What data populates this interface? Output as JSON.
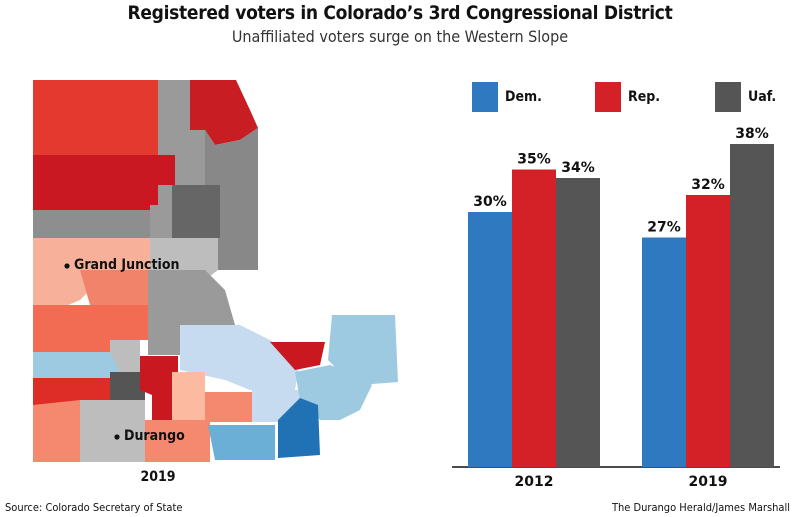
{
  "title": "Registered voters in Colorado’s 3rd Congressional District",
  "subtitle": "Unaffiliated voters surge on the Western Slope",
  "map": {
    "year_label": "2019",
    "cities": [
      "Grand Junction",
      "Durango"
    ]
  },
  "legend": [
    {
      "label": "Dem.",
      "color": "#2f79c0"
    },
    {
      "label": "Rep.",
      "color": "#d42027"
    },
    {
      "label": "Uaf.",
      "color": "#555555"
    }
  ],
  "chart_data": {
    "type": "bar",
    "categories": [
      "2012",
      "2019"
    ],
    "series": [
      {
        "name": "Dem.",
        "values": [
          30,
          27
        ],
        "labels": [
          "30%",
          "27%"
        ],
        "color": "#2f79c0"
      },
      {
        "name": "Rep.",
        "values": [
          35,
          32
        ],
        "labels": [
          "35%",
          "32%"
        ],
        "color": "#d42027"
      },
      {
        "name": "Uaf.",
        "values": [
          34,
          38
        ],
        "labels": [
          "34%",
          "38%"
        ],
        "color": "#555555"
      }
    ],
    "ylim": [
      0,
      42
    ],
    "legend_position": "top",
    "grid": false,
    "xlabel": "",
    "ylabel": ""
  },
  "source": "Source: Colorado Secretary of State",
  "credit": "The Durango Herald/James Marshall"
}
